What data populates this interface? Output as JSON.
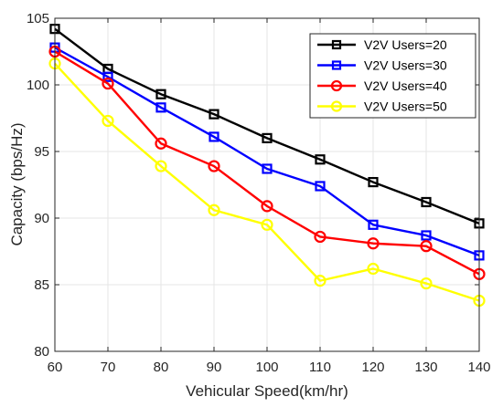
{
  "chart_data": {
    "type": "line",
    "xlabel": "Vehicular Speed(km/hr)",
    "ylabel": "Capacity (bps/Hz)",
    "x": [
      60,
      70,
      80,
      90,
      100,
      110,
      120,
      130,
      140
    ],
    "xlim": [
      60,
      140
    ],
    "ylim": [
      80,
      105
    ],
    "xticks": [
      60,
      70,
      80,
      90,
      100,
      110,
      120,
      130,
      140
    ],
    "yticks": [
      80,
      85,
      90,
      95,
      100,
      105
    ],
    "grid": true,
    "legend_position": "top-right",
    "series": [
      {
        "name": "V2V Users=20",
        "color": "#000000",
        "marker": "square",
        "values": [
          104.2,
          101.2,
          99.3,
          97.8,
          96.0,
          94.4,
          92.7,
          91.2,
          89.6
        ]
      },
      {
        "name": "V2V Users=30",
        "color": "#0000ff",
        "marker": "square",
        "values": [
          102.8,
          100.6,
          98.3,
          96.1,
          93.7,
          92.4,
          89.5,
          88.7,
          87.2
        ]
      },
      {
        "name": "V2V Users=40",
        "color": "#ff0000",
        "marker": "circle",
        "values": [
          102.5,
          100.1,
          95.6,
          93.9,
          90.9,
          88.6,
          88.1,
          87.9,
          85.8
        ]
      },
      {
        "name": "V2V Users=50",
        "color": "#ffff00",
        "marker": "circle",
        "values": [
          101.6,
          97.3,
          93.9,
          90.6,
          89.5,
          85.3,
          86.2,
          85.1,
          83.8
        ]
      }
    ]
  }
}
